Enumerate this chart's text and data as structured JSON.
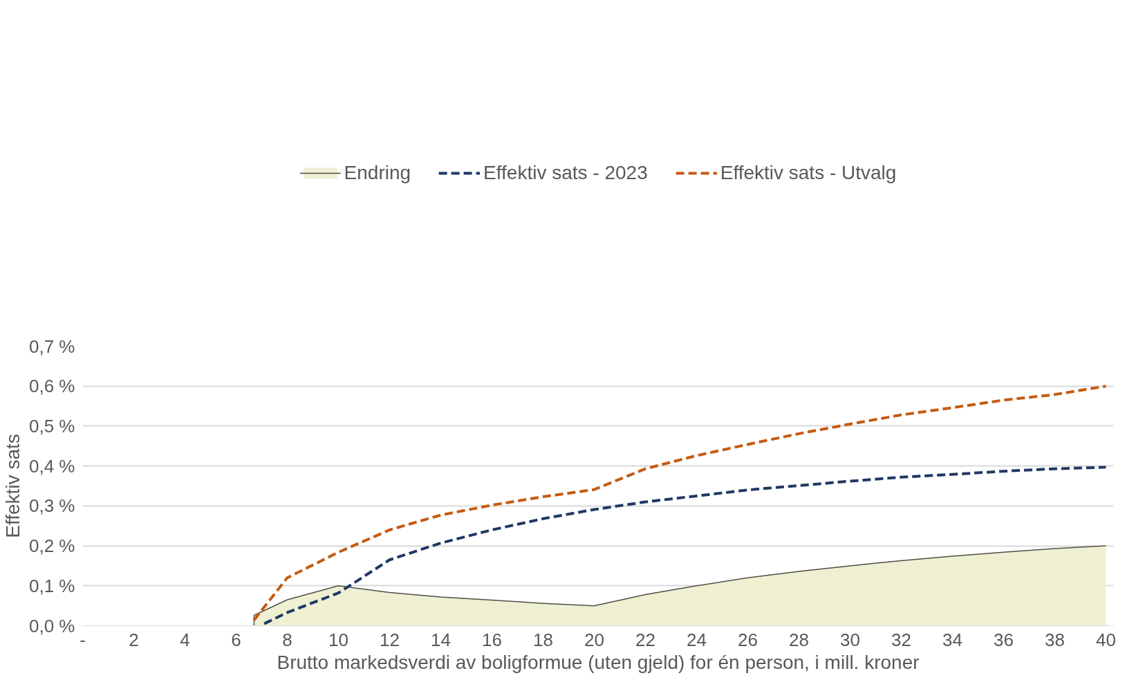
{
  "chart_data": {
    "type": "line",
    "xlabel": "Brutto markedsverdi av boligformue (uten gjeld) for én person, i mill. kroner",
    "ylabel": "Effektiv sats",
    "series": [
      {
        "name": "Endring",
        "type": "area",
        "color": "#efefd2",
        "x": [
          6.7,
          6.7,
          8,
          10,
          12,
          14,
          16,
          18,
          20,
          22,
          24,
          26,
          28,
          30,
          32,
          34,
          36,
          38,
          40
        ],
        "values": [
          0,
          0.026,
          0.065,
          0.1,
          0.083,
          0.072,
          0.064,
          0.056,
          0.05,
          0.078,
          0.1,
          0.12,
          0.136,
          0.15,
          0.163,
          0.174,
          0.184,
          0.193,
          0.2
        ]
      },
      {
        "name": "Effektiv sats - 2023",
        "color": "#1f3864",
        "x": [
          7.1,
          8,
          10,
          12,
          14,
          16,
          18,
          20,
          22,
          24,
          26,
          28,
          30,
          32,
          34,
          36,
          38,
          40
        ],
        "values": [
          0.005,
          0.033,
          0.082,
          0.165,
          0.207,
          0.24,
          0.268,
          0.291,
          0.31,
          0.325,
          0.34,
          0.351,
          0.362,
          0.372,
          0.379,
          0.387,
          0.393,
          0.397
        ]
      },
      {
        "name": "Effektiv sats - Utvalg",
        "color": "#c55a11",
        "x": [
          6.7,
          8,
          10,
          12,
          14,
          16,
          18,
          20,
          22,
          24,
          26,
          28,
          30,
          32,
          34,
          36,
          38,
          40
        ],
        "values": [
          0.014,
          0.12,
          0.184,
          0.24,
          0.277,
          0.302,
          0.323,
          0.341,
          0.393,
          0.426,
          0.454,
          0.481,
          0.505,
          0.528,
          0.546,
          0.565,
          0.579,
          0.6
        ]
      }
    ],
    "line_style": "dashed",
    "grid": "y",
    "legend": "top",
    "xlim": [
      0,
      40.3
    ],
    "xticks": [
      {
        "value": 0,
        "label": "-"
      },
      2,
      4,
      6,
      8,
      10,
      12,
      14,
      16,
      18,
      20,
      22,
      24,
      26,
      28,
      30,
      32,
      34,
      36,
      38,
      40
    ],
    "ylim": [
      0,
      0.7
    ],
    "yticks": [
      {
        "value": 0,
        "label": "0,0 %"
      },
      {
        "value": 0.1,
        "label": "0,1 %"
      },
      {
        "value": 0.2,
        "label": "0,2 %"
      },
      {
        "value": 0.3,
        "label": "0,3 %"
      },
      {
        "value": 0.4,
        "label": "0,4 %"
      },
      {
        "value": 0.5,
        "label": "0,5 %"
      },
      {
        "value": 0.6,
        "label": "0,6 %"
      },
      {
        "value": 0.7,
        "label": "0,7 %"
      }
    ]
  }
}
